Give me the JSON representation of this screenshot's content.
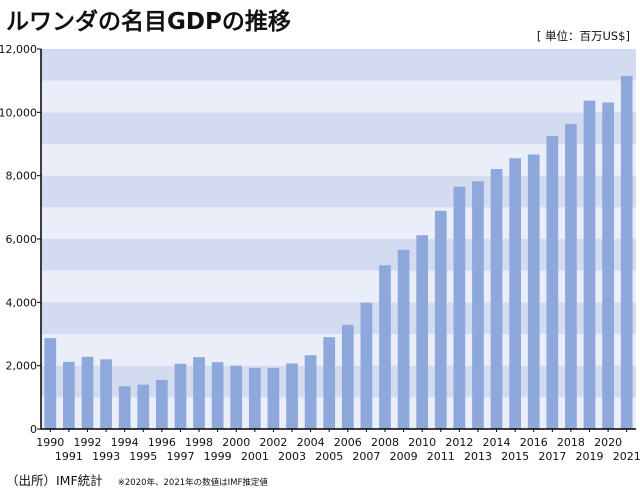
{
  "header": {
    "title": "ルワンダの名目GDPの推移",
    "unit": "[ 単位：百万US$]"
  },
  "footer": {
    "source": "（出所）IMF統計",
    "note": "※2020年、2021年の数値はIMF推定値"
  },
  "colors": {
    "bar": "#8fa8dc",
    "band_light": "#e9eef9",
    "band_dark": "#d2dbf0",
    "axis": "#000000"
  },
  "chart_data": {
    "type": "bar",
    "ylim": [
      0,
      12000
    ],
    "yticks": [
      0,
      2000,
      4000,
      6000,
      8000,
      10000,
      12000
    ],
    "ytick_labels": [
      "0",
      "2,000",
      "4,000",
      "6,000",
      "8,000",
      "10,000",
      "12,000"
    ],
    "grid": "alternating horizontal bands",
    "categories": [
      "1990",
      "1991",
      "1992",
      "1993",
      "1994",
      "1995",
      "1996",
      "1997",
      "1998",
      "1999",
      "2000",
      "2001",
      "2002",
      "2003",
      "2004",
      "2005",
      "2006",
      "2007",
      "2008",
      "2009",
      "2010",
      "2011",
      "2012",
      "2013",
      "2014",
      "2015",
      "2016",
      "2017",
      "2018",
      "2019",
      "2020",
      "2021"
    ],
    "values": [
      2870,
      2120,
      2280,
      2200,
      1350,
      1400,
      1550,
      2060,
      2270,
      2110,
      2000,
      1930,
      1930,
      2070,
      2330,
      2900,
      3290,
      3990,
      5170,
      5660,
      6120,
      6890,
      7650,
      7820,
      8210,
      8550,
      8670,
      9250,
      9630,
      10370,
      10310,
      11150
    ]
  }
}
